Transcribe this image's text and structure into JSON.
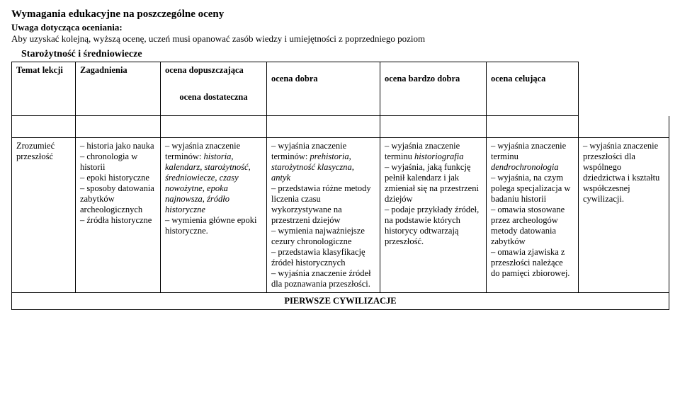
{
  "header": {
    "title": "Wymagania edukacyjne na poszczególne oceny",
    "subtitle": "Uwaga dotycząca oceniania:",
    "note": "Aby uzyskać kolejną, wyższą ocenę, uczeń musi opanować zasób wiedzy i umiejętności z poprzedniego poziom",
    "section": "Starożytność i średniowiecze"
  },
  "table": {
    "head": {
      "col1": "Temat lekcji",
      "col2": "Zagadnienia",
      "col3a": "ocena dopuszczająca",
      "col3b": "ocena dostateczna",
      "col4": "ocena dobra",
      "col5": "ocena bardzo dobra",
      "col6": "ocena celująca"
    },
    "row": {
      "topic": "Zrozumieć przeszłość",
      "issues_l1": "– historia jako nauka",
      "issues_l2": "– chronologia w historii",
      "issues_l3": "– epoki historyczne",
      "issues_l4": "– sposoby datowania zabytków archeologicznych",
      "issues_l5": "– źródła historyczne",
      "c3_l1a": "– wyjaśnia znaczenie terminów: ",
      "c3_l1b": "historia, kalendarz, starożytność, średniowiecze, czasy nowożytne, epoka najnowsza, źródło historyczne",
      "c3_l2": "– wymienia główne epoki historyczne.",
      "c4_l1a": "– wyjaśnia znaczenie terminów: ",
      "c4_l1b": "prehistoria, starożytność klasyczna, antyk",
      "c4_l2": "– przedstawia różne metody liczenia czasu wykorzystywane na przestrzeni dziejów",
      "c4_l3": "– wymienia najważniejsze cezury chronologiczne",
      "c4_l4": "– przedstawia klasyfikację źródeł historycznych",
      "c4_l5": "– wyjaśnia znaczenie źródeł dla poznawania przeszłości.",
      "c5_l1a": "– wyjaśnia znaczenie terminu ",
      "c5_l1b": "historiografia",
      "c5_l2": "– wyjaśnia, jaką funkcję pełnił kalendarz i jak zmieniał się na przestrzeni dziejów",
      "c5_l3": "– podaje przykłady źródeł, na podstawie których historycy odtwarzają przeszłość.",
      "c6_l1a": "– wyjaśnia znaczenie terminu ",
      "c6_l1b": "dendrochronologia",
      "c6_l2": "– wyjaśnia, na czym polega specjalizacja w badaniu historii",
      "c6_l3": "– omawia stosowane przez archeologów metody datowania zabytków",
      "c6_l4": "– omawia zjawiska z przeszłości należące do pamięci zbiorowej.",
      "c7_l1": "– wyjaśnia znaczenie przeszłości dla wspólnego dziedzictwa i kształtu współczesnej cywilizacji."
    },
    "section_row": "PIERWSZE CYWILIZACJE"
  }
}
